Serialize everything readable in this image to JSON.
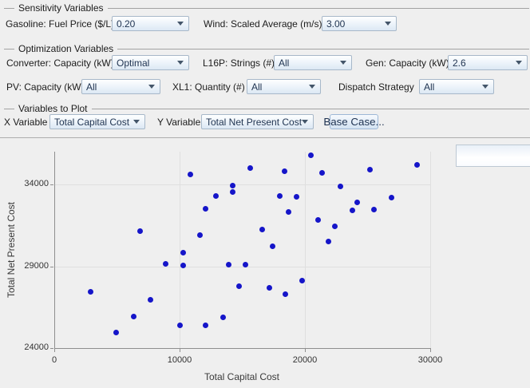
{
  "sections": {
    "sensitivity": {
      "title": "Sensitivity Variables",
      "fields": [
        {
          "label": "Gasoline: Fuel Price ($/L)",
          "value": "0.20"
        },
        {
          "label": "Wind: Scaled Average (m/s)",
          "value": "3.00"
        }
      ]
    },
    "optimization": {
      "title": "Optimization Variables",
      "fields": [
        {
          "label": "Converter: Capacity (kW)",
          "value": "Optimal"
        },
        {
          "label": "L16P: Strings (#)",
          "value": "All"
        },
        {
          "label": "Gen: Capacity (kW)",
          "value": "2.6"
        },
        {
          "label": "PV: Capacity (kW)",
          "value": "All"
        },
        {
          "label": "XL1: Quantity (#)",
          "value": "All"
        },
        {
          "label": "Dispatch Strategy",
          "value": "All"
        }
      ]
    },
    "plot_vars": {
      "title": "Variables to Plot",
      "fields": [
        {
          "label": "X Variable",
          "value": "Total Capital Cost"
        },
        {
          "label": "Y Variable",
          "value": "Total Net Present Cost"
        }
      ],
      "base_case_button": "Base Case..."
    }
  },
  "icons": {
    "dropdown_arrow": "▼"
  },
  "colors": {
    "window_bg": "#efefef",
    "combo_border": "#a7b8c9",
    "combo_text": "#1f3350",
    "gridline": "#dfdfdf",
    "axis": "#8e8e8e",
    "point": "#1515c9"
  },
  "chart_data": {
    "type": "scatter",
    "title": "",
    "xlabel": "Total Capital Cost",
    "ylabel": "Total Net Present Cost",
    "xlim": [
      0,
      30000
    ],
    "ylim": [
      24000,
      36000
    ],
    "x_ticks": [
      0,
      10000,
      20000,
      30000
    ],
    "y_ticks": [
      24000,
      29000,
      34000
    ],
    "grid": true,
    "legend": "empty box top-right",
    "point_color": "#1515c9",
    "points": [
      [
        2850,
        27450
      ],
      [
        4900,
        24950
      ],
      [
        6300,
        25950
      ],
      [
        6800,
        31150
      ],
      [
        7600,
        26950
      ],
      [
        8850,
        29150
      ],
      [
        9950,
        25400
      ],
      [
        10200,
        29850
      ],
      [
        10200,
        29050
      ],
      [
        10800,
        34600
      ],
      [
        11550,
        30900
      ],
      [
        12000,
        32500
      ],
      [
        12000,
        25400
      ],
      [
        12850,
        33300
      ],
      [
        13400,
        25900
      ],
      [
        13850,
        29100
      ],
      [
        14150,
        33550
      ],
      [
        14200,
        33950
      ],
      [
        14700,
        27800
      ],
      [
        15200,
        29100
      ],
      [
        15600,
        35000
      ],
      [
        16500,
        31250
      ],
      [
        17100,
        27700
      ],
      [
        17350,
        30200
      ],
      [
        17900,
        33300
      ],
      [
        18300,
        34800
      ],
      [
        18350,
        27300
      ],
      [
        18650,
        32300
      ],
      [
        19250,
        33250
      ],
      [
        19700,
        28100
      ],
      [
        20400,
        35800
      ],
      [
        21000,
        31850
      ],
      [
        21300,
        34700
      ],
      [
        21800,
        30500
      ],
      [
        22300,
        31450
      ],
      [
        22800,
        33900
      ],
      [
        23700,
        32400
      ],
      [
        24100,
        32900
      ],
      [
        25100,
        34900
      ],
      [
        25450,
        32450
      ],
      [
        26850,
        33200
      ],
      [
        28900,
        35200
      ]
    ]
  }
}
